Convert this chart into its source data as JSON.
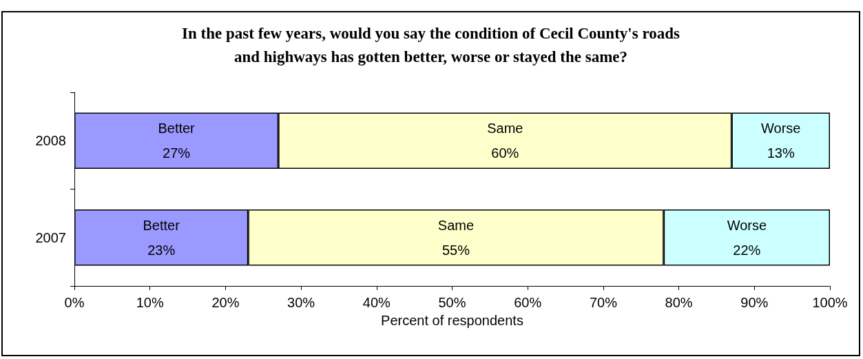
{
  "chart_data": {
    "type": "bar",
    "orientation": "horizontal",
    "stacked": true,
    "title": "In the past few years, would you say the condition of Cecil County's roads\nand highways has gotten better, worse or stayed the same?",
    "xlabel": "Percent of respondents",
    "categories": [
      "2008",
      "2007"
    ],
    "series": [
      {
        "name": "Better",
        "color": "#9999ff",
        "values": [
          27,
          23
        ],
        "value_labels": [
          "27%",
          "23%"
        ]
      },
      {
        "name": "Same",
        "color": "#ffffcc",
        "values": [
          60,
          55
        ],
        "value_labels": [
          "60%",
          "55%"
        ]
      },
      {
        "name": "Worse",
        "color": "#ccffff",
        "values": [
          13,
          22
        ],
        "value_labels": [
          "13%",
          "22%"
        ]
      }
    ],
    "xlim": [
      0,
      100
    ],
    "xticks": [
      {
        "value": 0,
        "label": "0%"
      },
      {
        "value": 10,
        "label": "10%"
      },
      {
        "value": 20,
        "label": "20%"
      },
      {
        "value": 30,
        "label": "30%"
      },
      {
        "value": 40,
        "label": "40%"
      },
      {
        "value": 50,
        "label": "50%"
      },
      {
        "value": 60,
        "label": "60%"
      },
      {
        "value": 70,
        "label": "70%"
      },
      {
        "value": 80,
        "label": "80%"
      },
      {
        "value": 90,
        "label": "90%"
      },
      {
        "value": 100,
        "label": "100%"
      }
    ],
    "grid": false,
    "legend": false
  }
}
